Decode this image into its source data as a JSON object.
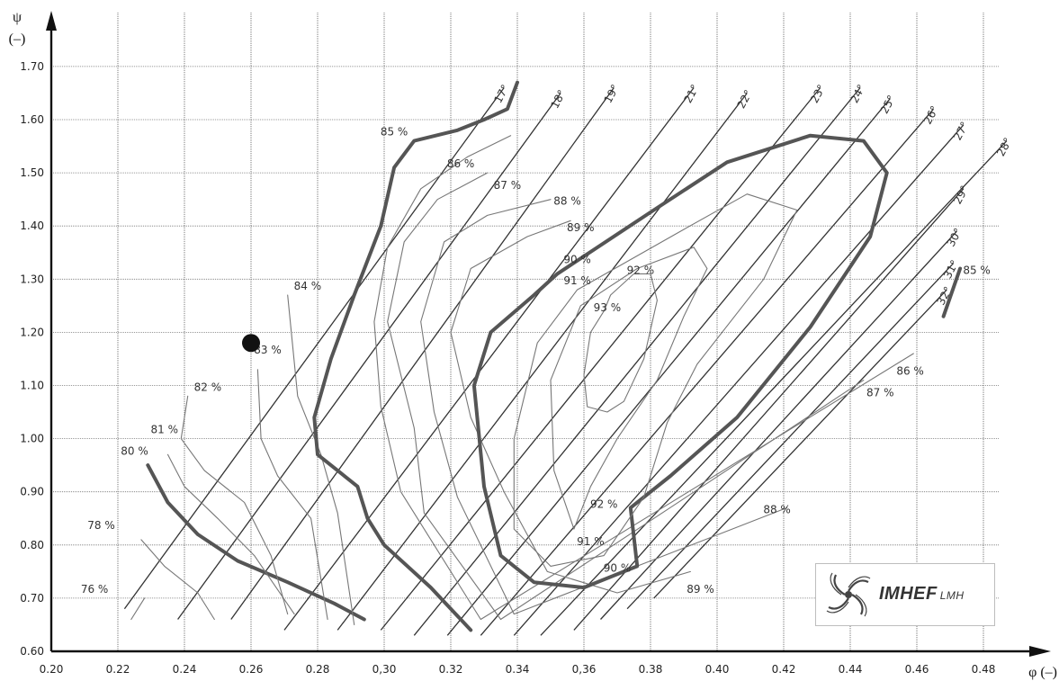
{
  "chart_data": {
    "type": "line",
    "xlabel": "φ (–)",
    "ylabel": "ψ",
    "ylabel_unit": "(–)",
    "xlim": [
      0.2,
      0.49
    ],
    "ylim": [
      0.6,
      1.76
    ],
    "grid": true,
    "x_ticks": [
      "0.20",
      "0.22",
      "0.24",
      "0.26",
      "0.28",
      "0,30",
      "0.32",
      "0.34",
      "0,36",
      "0.38",
      "0.40",
      "0.42",
      "0.44",
      "0.46",
      "0.48"
    ],
    "x_tick_values": [
      0.2,
      0.22,
      0.24,
      0.26,
      0.28,
      0.3,
      0.32,
      0.34,
      0.36,
      0.38,
      0.4,
      0.42,
      0.44,
      0.46,
      0.48
    ],
    "y_ticks": [
      "0.60",
      "0.70",
      "0.80",
      "0.90",
      "1.00",
      "1.10",
      "1.20",
      "1.30",
      "1.40",
      "1.50",
      "1.60",
      "1.70"
    ],
    "y_tick_values": [
      0.6,
      0.7,
      0.8,
      0.9,
      1.0,
      1.1,
      1.2,
      1.3,
      1.4,
      1.5,
      1.6,
      1.7
    ],
    "operating_point": {
      "x": 0.26,
      "y": 1.18
    },
    "guide_vane_angle_lines": [
      {
        "label": "17°",
        "x": [
          0.222,
          0.336
        ],
        "y": [
          0.68,
          1.66
        ]
      },
      {
        "label": "18°",
        "x": [
          0.238,
          0.353
        ],
        "y": [
          0.66,
          1.65
        ]
      },
      {
        "label": "19°",
        "x": [
          0.254,
          0.369
        ],
        "y": [
          0.66,
          1.66
        ]
      },
      {
        "label": "21°",
        "x": [
          0.27,
          0.393
        ],
        "y": [
          0.64,
          1.66
        ]
      },
      {
        "label": "22°",
        "x": [
          0.286,
          0.409
        ],
        "y": [
          0.64,
          1.65
        ]
      },
      {
        "label": "23°",
        "x": [
          0.299,
          0.431
        ],
        "y": [
          0.64,
          1.66
        ]
      },
      {
        "label": "24°",
        "x": [
          0.309,
          0.443
        ],
        "y": [
          0.63,
          1.66
        ]
      },
      {
        "label": "25°",
        "x": [
          0.319,
          0.452
        ],
        "y": [
          0.63,
          1.64
        ]
      },
      {
        "label": "26°",
        "x": [
          0.329,
          0.465
        ],
        "y": [
          0.63,
          1.62
        ]
      },
      {
        "label": "27°",
        "x": [
          0.339,
          0.474
        ],
        "y": [
          0.63,
          1.59
        ]
      },
      {
        "label": "28°",
        "x": [
          0.347,
          0.487
        ],
        "y": [
          0.63,
          1.56
        ]
      },
      {
        "label": "29°",
        "x": [
          0.357,
          0.474
        ],
        "y": [
          0.64,
          1.47
        ]
      },
      {
        "label": "30°",
        "x": [
          0.365,
          0.472
        ],
        "y": [
          0.66,
          1.39
        ]
      },
      {
        "label": "31°",
        "x": [
          0.373,
          0.471
        ],
        "y": [
          0.68,
          1.33
        ]
      },
      {
        "label": "32°",
        "x": [
          0.381,
          0.469
        ],
        "y": [
          0.7,
          1.28
        ]
      }
    ],
    "efficiency_contours": [
      {
        "label": "76 %",
        "bold": false,
        "x": [
          0.224,
          0.226,
          0.228
        ],
        "y": [
          0.66,
          0.68,
          0.7
        ]
      },
      {
        "label": "78 %",
        "bold": false,
        "x": [
          0.227,
          0.234,
          0.244,
          0.249
        ],
        "y": [
          0.81,
          0.76,
          0.71,
          0.66
        ]
      },
      {
        "label": "80 %",
        "bold": true,
        "x": [
          0.229,
          0.235,
          0.244,
          0.256,
          0.271,
          0.285,
          0.294
        ],
        "y": [
          0.95,
          0.88,
          0.82,
          0.77,
          0.73,
          0.69,
          0.66
        ]
      },
      {
        "label": "81 %",
        "bold": false,
        "x": [
          0.235,
          0.24,
          0.25,
          0.261,
          0.273
        ],
        "y": [
          0.97,
          0.91,
          0.85,
          0.78,
          0.67
        ]
      },
      {
        "label": "82 %",
        "bold": false,
        "x": [
          0.241,
          0.239,
          0.246,
          0.258,
          0.266,
          0.271
        ],
        "y": [
          1.08,
          1.0,
          0.94,
          0.88,
          0.78,
          0.67
        ]
      },
      {
        "label": "83 %",
        "bold": false,
        "x": [
          0.262,
          0.263,
          0.268,
          0.278,
          0.283
        ],
        "y": [
          1.13,
          1.0,
          0.93,
          0.85,
          0.66
        ]
      },
      {
        "label": "84 %",
        "bold": false,
        "x": [
          0.271,
          0.274,
          0.281,
          0.286,
          0.291
        ],
        "y": [
          1.27,
          1.08,
          0.97,
          0.86,
          0.65
        ]
      },
      {
        "label": "85 %",
        "bold": true,
        "x": [
          0.34,
          0.337,
          0.33,
          0.322,
          0.309,
          0.303,
          0.299,
          0.291,
          0.284,
          0.279,
          0.28,
          0.292,
          0.295,
          0.3,
          0.314,
          0.326
        ],
        "y": [
          1.67,
          1.62,
          1.6,
          1.58,
          1.56,
          1.51,
          1.4,
          1.27,
          1.15,
          1.04,
          0.97,
          0.91,
          0.85,
          0.8,
          0.72,
          0.64
        ]
      },
      {
        "label": "85 %",
        "bold": true,
        "x": [
          0.468,
          0.473
        ],
        "y": [
          1.23,
          1.32
        ]
      },
      {
        "label": "86 %",
        "bold": false,
        "x": [
          0.338,
          0.325,
          0.311,
          0.301,
          0.297,
          0.299,
          0.305,
          0.329,
          0.459
        ],
        "y": [
          1.57,
          1.53,
          1.47,
          1.36,
          1.22,
          1.06,
          0.9,
          0.66,
          1.16
        ]
      },
      {
        "label": "87 %",
        "bold": false,
        "x": [
          0.331,
          0.316,
          0.306,
          0.301,
          0.309,
          0.312,
          0.335,
          0.444
        ],
        "y": [
          1.5,
          1.45,
          1.37,
          1.22,
          1.02,
          0.86,
          0.66,
          1.11
        ]
      },
      {
        "label": "88 %",
        "bold": false,
        "x": [
          0.35,
          0.331,
          0.318,
          0.311,
          0.315,
          0.322,
          0.339,
          0.421
        ],
        "y": [
          1.45,
          1.42,
          1.37,
          1.22,
          1.05,
          0.89,
          0.67,
          0.87
        ]
      },
      {
        "label": "89 %",
        "bold": false,
        "x": [
          0.356,
          0.343,
          0.326,
          0.32,
          0.326,
          0.336,
          0.349,
          0.37,
          0.392
        ],
        "y": [
          1.41,
          1.38,
          1.32,
          1.2,
          1.04,
          0.9,
          0.75,
          0.71,
          0.75
        ]
      },
      {
        "label": "90 %",
        "bold": true,
        "x": [
          0.352,
          0.381,
          0.403,
          0.428,
          0.444,
          0.451,
          0.446,
          0.428,
          0.406,
          0.386,
          0.374,
          0.376,
          0.36,
          0.345,
          0.335,
          0.33,
          0.327,
          0.332,
          0.345,
          0.352
        ],
        "y": [
          1.31,
          1.43,
          1.52,
          1.57,
          1.56,
          1.5,
          1.38,
          1.21,
          1.04,
          0.93,
          0.87,
          0.76,
          0.72,
          0.73,
          0.78,
          0.91,
          1.1,
          1.2,
          1.27,
          1.31
        ]
      },
      {
        "label": "91 %",
        "bold": false,
        "x": [
          0.358,
          0.389,
          0.409,
          0.424,
          0.414,
          0.394,
          0.385,
          0.378,
          0.366,
          0.35,
          0.339,
          0.339,
          0.346,
          0.358
        ],
        "y": [
          1.28,
          1.39,
          1.46,
          1.43,
          1.3,
          1.14,
          1.03,
          0.89,
          0.78,
          0.76,
          0.83,
          1.0,
          1.18,
          1.28
        ]
      },
      {
        "label": "92 %",
        "bold": false,
        "x": [
          0.359,
          0.376,
          0.393,
          0.397,
          0.39,
          0.382,
          0.37,
          0.362,
          0.357,
          0.351,
          0.35,
          0.359
        ],
        "y": [
          1.25,
          1.32,
          1.36,
          1.32,
          1.23,
          1.11,
          1.0,
          0.91,
          0.83,
          0.94,
          1.11,
          1.25
        ]
      },
      {
        "label": "93 %",
        "bold": false,
        "x": [
          0.368,
          0.375,
          0.38,
          0.382,
          0.378,
          0.372,
          0.367,
          0.361,
          0.36,
          0.362,
          0.366,
          0.368
        ],
        "y": [
          1.27,
          1.31,
          1.31,
          1.26,
          1.15,
          1.07,
          1.05,
          1.06,
          1.12,
          1.2,
          1.24,
          1.27
        ]
      }
    ],
    "iso_labels": [
      {
        "text": "76 %",
        "x": 0.213,
        "y": 0.71
      },
      {
        "text": "78 %",
        "x": 0.215,
        "y": 0.83
      },
      {
        "text": "80 %",
        "x": 0.225,
        "y": 0.97
      },
      {
        "text": "81 %",
        "x": 0.234,
        "y": 1.01
      },
      {
        "text": "82 %",
        "x": 0.247,
        "y": 1.09
      },
      {
        "text": "83 %",
        "x": 0.265,
        "y": 1.16
      },
      {
        "text": "84 %",
        "x": 0.277,
        "y": 1.28
      },
      {
        "text": "85 %",
        "x": 0.303,
        "y": 1.57
      },
      {
        "text": "85 %",
        "x": 0.478,
        "y": 1.31
      },
      {
        "text": "86 %",
        "x": 0.323,
        "y": 1.51
      },
      {
        "text": "86 %",
        "x": 0.458,
        "y": 1.12
      },
      {
        "text": "87 %",
        "x": 0.337,
        "y": 1.47
      },
      {
        "text": "87 %",
        "x": 0.449,
        "y": 1.08
      },
      {
        "text": "88 %",
        "x": 0.355,
        "y": 1.44
      },
      {
        "text": "88 %",
        "x": 0.418,
        "y": 0.86
      },
      {
        "text": "89 %",
        "x": 0.359,
        "y": 1.39
      },
      {
        "text": "89 %",
        "x": 0.395,
        "y": 0.71
      },
      {
        "text": "90 %",
        "x": 0.358,
        "y": 1.33
      },
      {
        "text": "90 %",
        "x": 0.37,
        "y": 0.75
      },
      {
        "text": "91 %",
        "x": 0.358,
        "y": 1.29
      },
      {
        "text": "91 %",
        "x": 0.362,
        "y": 0.8
      },
      {
        "text": "92 %",
        "x": 0.377,
        "y": 1.31
      },
      {
        "text": "92 %",
        "x": 0.366,
        "y": 0.87
      },
      {
        "text": "93 %",
        "x": 0.367,
        "y": 1.24
      }
    ]
  },
  "logo": {
    "name": "IMHEF",
    "sub": "LMH"
  }
}
